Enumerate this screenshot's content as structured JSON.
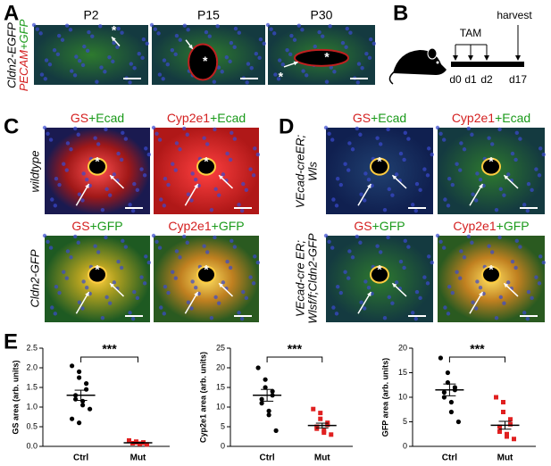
{
  "symbol": "*",
  "panel_a": {
    "letter": "A",
    "row_label": {
      "line": "Cldn2-EGFP",
      "stain": [
        "PECAM",
        "+GFP"
      ]
    },
    "images": [
      {
        "title": "P2"
      },
      {
        "title": "P15"
      },
      {
        "title": "P30"
      }
    ]
  },
  "panel_b": {
    "letter": "B",
    "treatment": "TAM",
    "endpoint": "harvest",
    "days": [
      "d0",
      "d1",
      "d2",
      "d17"
    ]
  },
  "panel_c": {
    "letter": "C",
    "row_labels": [
      [
        "wildtype"
      ],
      [
        "Cldn2-GFP"
      ]
    ],
    "images": [
      {
        "title": [
          "GS",
          "+Ecad"
        ]
      },
      {
        "title": [
          "Cyp2e1",
          "+Ecad"
        ]
      },
      {
        "title": [
          "GS",
          "+GFP"
        ]
      },
      {
        "title": [
          "Cyp2e1",
          "+GFP"
        ]
      }
    ]
  },
  "panel_d": {
    "letter": "D",
    "row_labels": [
      [
        "VEcad-creER;",
        "Wls"
      ],
      [
        "VEcad-cre ER;",
        "Wlsf/f;Cldn2-GFP"
      ]
    ],
    "images": [
      {
        "title": [
          "GS",
          "+Ecad"
        ]
      },
      {
        "title": [
          "Cyp2e1",
          "+Ecad"
        ]
      },
      {
        "title": [
          "GS",
          "+GFP"
        ]
      },
      {
        "title": [
          "Cyp2e1",
          "+GFP"
        ]
      }
    ]
  },
  "panel_e": {
    "letter": "E",
    "significance": "***",
    "categories": [
      "Ctrl",
      "Mut"
    ],
    "plots": [
      {
        "type": "dot",
        "y_label": "GS area (arb. units)",
        "ylim": [
          0,
          2.5
        ],
        "yticks": [
          {
            "value": 0,
            "label": "0.0"
          },
          {
            "value": 0.5,
            "label": "0.5"
          },
          {
            "value": 1,
            "label": "1.0"
          },
          {
            "value": 1.5,
            "label": "1.5"
          },
          {
            "value": 2,
            "label": "2.0"
          },
          {
            "value": 2.5,
            "label": "2.5"
          }
        ],
        "groups": [
          {
            "color": "#000000",
            "marker": "circle",
            "values": [
              2.05,
              1.9,
              1.75,
              1.6,
              1.45,
              1.3,
              1.2,
              1.15,
              1.05,
              0.95,
              0.7,
              0.6
            ],
            "mean": 1.3,
            "sem": 0.13
          },
          {
            "color": "#e02020",
            "marker": "square",
            "values": [
              0.15,
              0.12,
              0.1,
              0.1,
              0.09,
              0.08,
              0.08,
              0.07,
              0.06,
              0.05
            ],
            "mean": 0.09,
            "sem": 0.01
          }
        ]
      },
      {
        "type": "dot",
        "y_label": "Cyp2e1 area (arb. units)",
        "ylim": [
          0,
          25
        ],
        "yticks": [
          0,
          5,
          10,
          15,
          20,
          25
        ],
        "groups": [
          {
            "color": "#000000",
            "marker": "circle",
            "values": [
              20,
              17,
              15,
              14,
              13,
              12,
              11,
              9,
              8,
              4
            ],
            "mean": 13,
            "sem": 1.5
          },
          {
            "color": "#e02020",
            "marker": "square",
            "values": [
              9.5,
              8.5,
              7,
              6,
              5.5,
              5,
              4.5,
              4,
              3.5,
              3
            ],
            "mean": 5.3,
            "sem": 0.6
          }
        ]
      },
      {
        "type": "dot",
        "y_label": "GFP area (arb. units)",
        "ylim": [
          0,
          20
        ],
        "yticks": [
          0,
          5,
          10,
          15,
          20
        ],
        "groups": [
          {
            "color": "#000000",
            "marker": "circle",
            "values": [
              18,
              15,
              13,
              12,
              11.5,
              11,
              10,
              9,
              7,
              5
            ],
            "mean": 11.5,
            "sem": 1.2
          },
          {
            "color": "#e02020",
            "marker": "square",
            "values": [
              10,
              9,
              7,
              5.5,
              4.5,
              4,
              3,
              2.5,
              2,
              1.5
            ],
            "mean": 4.3,
            "sem": 0.8
          }
        ]
      }
    ]
  }
}
